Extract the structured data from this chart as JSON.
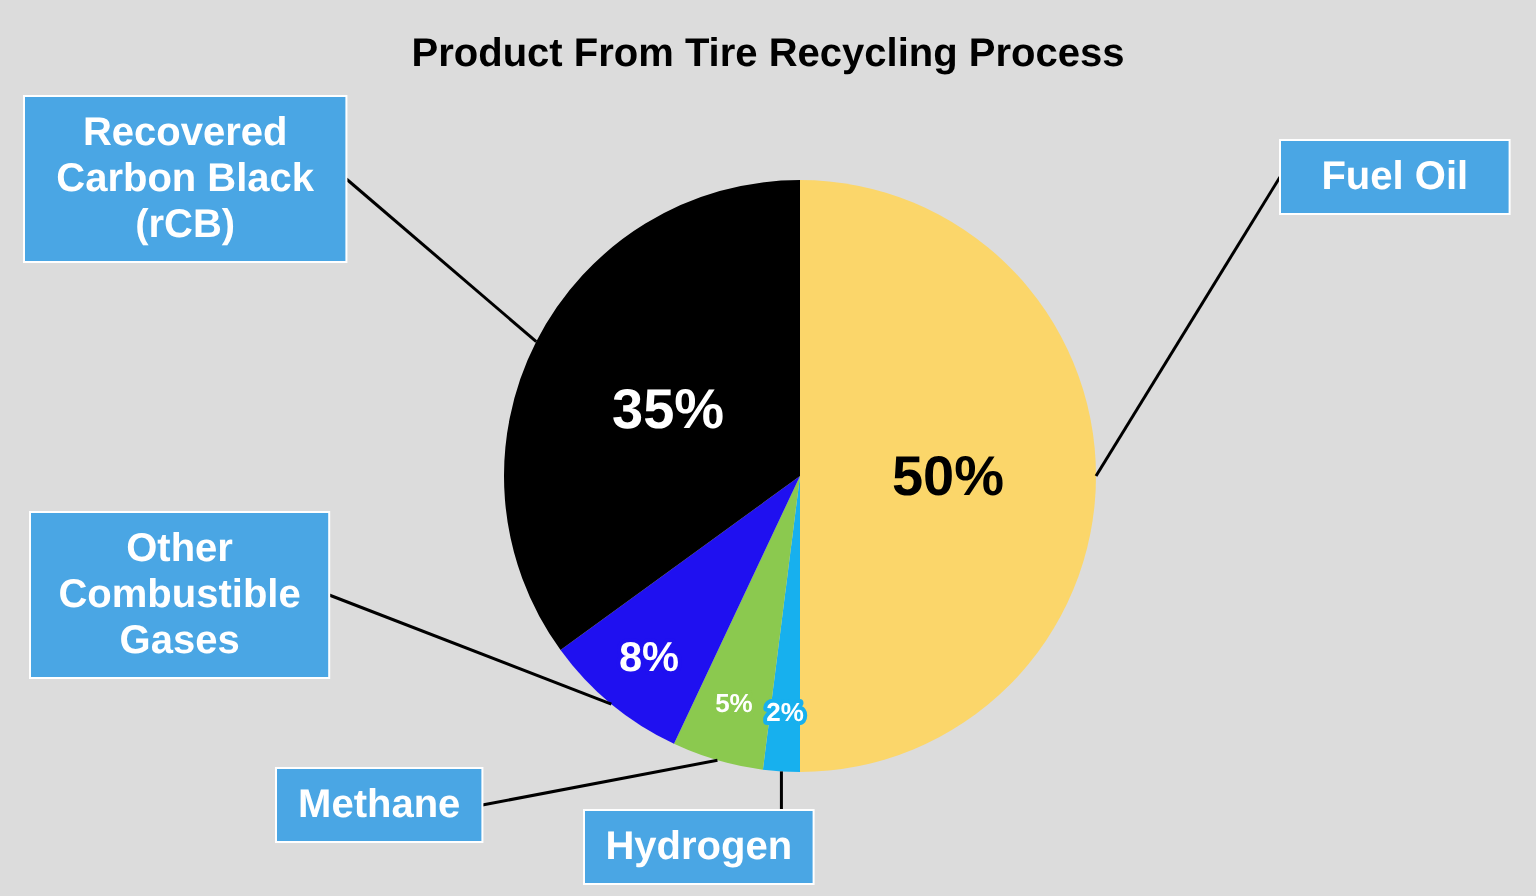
{
  "chart_data": {
    "type": "pie",
    "title": "Product From Tire Recycling Process",
    "categories": [
      "Fuel Oil",
      "Hydrogen",
      "Methane",
      "Other Combustible Gases",
      "Recovered Carbon Black (rCB)"
    ],
    "values": [
      50,
      2,
      5,
      8,
      35
    ],
    "colors": [
      "#fbd66a",
      "#17b0ee",
      "#8bc94f",
      "#1f10f0",
      "#000000"
    ],
    "value_labels": [
      "50%",
      "2%",
      "5%",
      "8%",
      "35%"
    ]
  }
}
